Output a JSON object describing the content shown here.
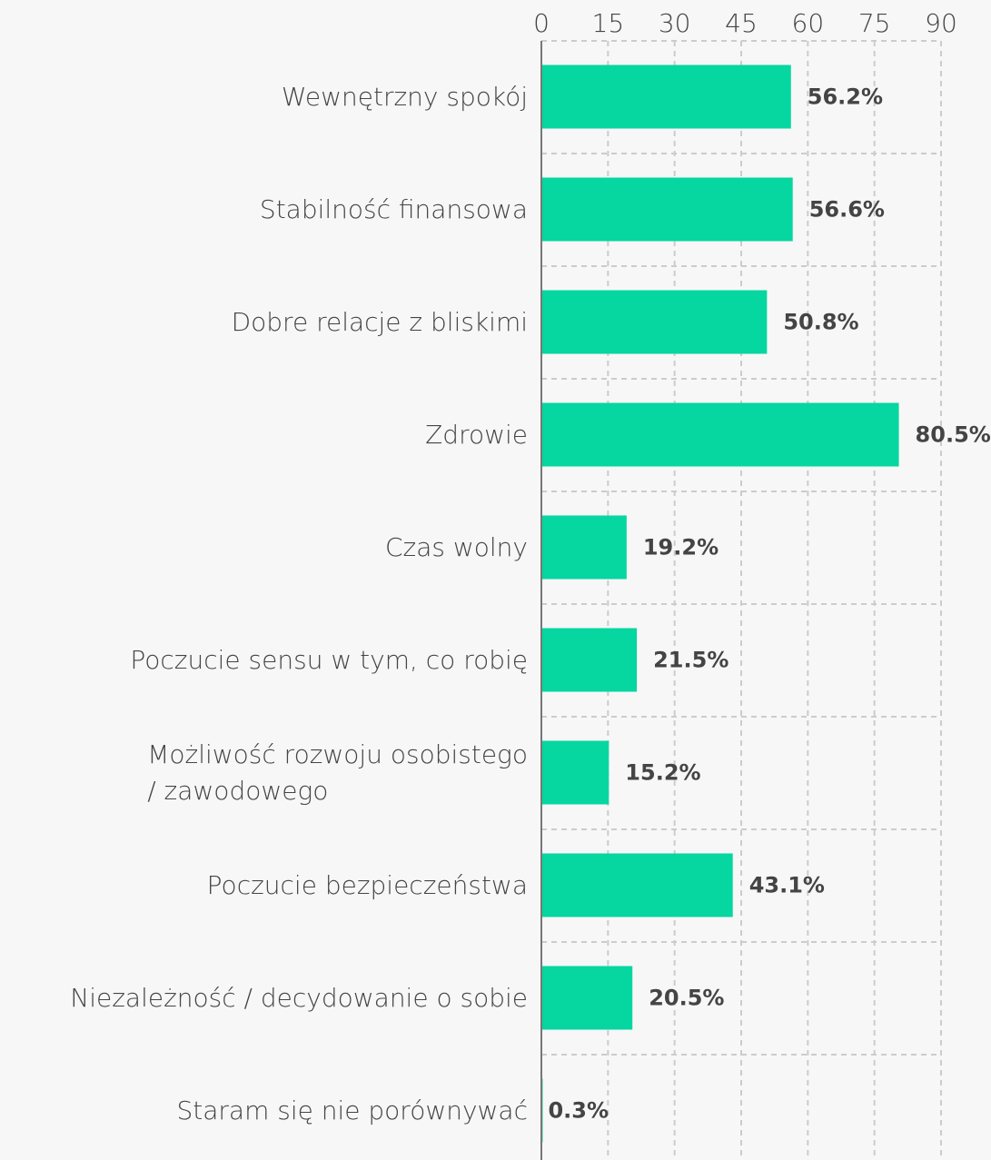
{
  "chart_data": {
    "type": "barh",
    "categories": [
      "Wewnętrzny spokój",
      "Stabilność finansowa",
      "Dobre relacje z bliskimi",
      "Zdrowie",
      "Czas wolny",
      "Poczucie sensu w tym, co robię",
      "Możliwość rozwoju osobistego\n/ zawodowego",
      "Poczucie bezpieczeństwa",
      "Niezależność / decydowanie o sobie",
      "Staram się nie porównywać"
    ],
    "values": [
      56.2,
      56.6,
      50.8,
      80.5,
      19.2,
      21.5,
      15.2,
      43.1,
      20.5,
      0.3
    ],
    "value_labels": [
      "56.2%",
      "56.6%",
      "50.8%",
      "80.5%",
      "19.2%",
      "21.5%",
      "15.2%",
      "43.1%",
      "20.5%",
      "0.3%"
    ],
    "color": "#06d6a0",
    "xlim": [
      0,
      90
    ],
    "xticks": [
      0,
      15,
      30,
      45,
      60,
      75,
      90
    ],
    "grid": true
  }
}
